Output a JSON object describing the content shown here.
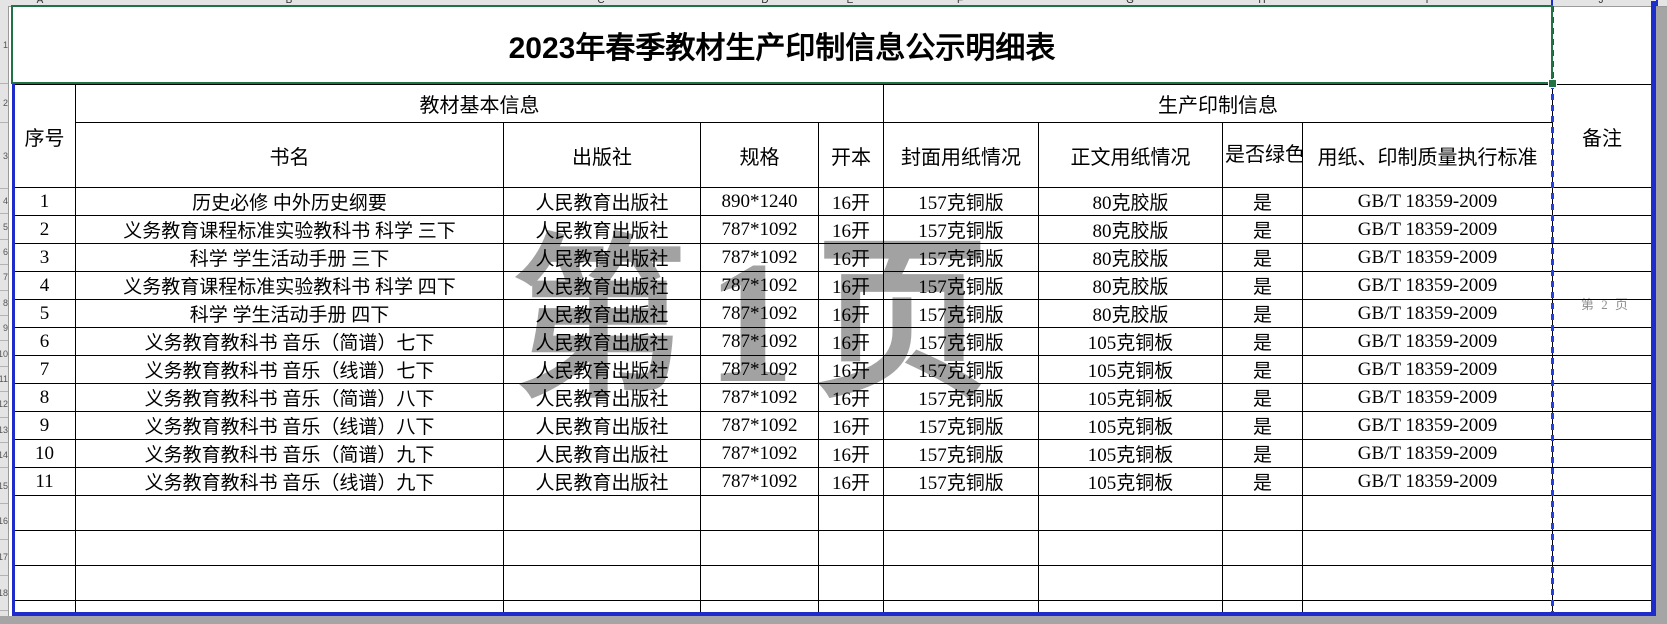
{
  "title": "2023年春季教材生产印制信息公示明细表",
  "chrome": {
    "column_letters": [
      "A",
      "B",
      "C",
      "D",
      "E",
      "F",
      "G",
      "H",
      "I",
      "J"
    ],
    "row_numbers": [
      "1",
      "2",
      "3",
      "4",
      "5",
      "6",
      "7",
      "8",
      "9",
      "10",
      "11",
      "12",
      "13",
      "14",
      "15",
      "16",
      "17",
      "18"
    ]
  },
  "watermarks": {
    "page1": "第 1 页",
    "page2": "第 2 页"
  },
  "table": {
    "header_groups": {
      "serial": "序号",
      "basic_info": "教材基本信息",
      "production_info": "生产印制信息",
      "remark": "备注"
    },
    "sub_headers": {
      "book_name": "书名",
      "publisher": "出版社",
      "spec": "规格",
      "format": "开本",
      "cover_paper": "封面用纸情况",
      "body_paper": "正文用纸情况",
      "green_print": "是否绿色印刷",
      "standard": "用纸、印制质量执行标准"
    },
    "rows": [
      {
        "seq": "1",
        "name": "历史必修 中外历史纲要",
        "publisher": "人民教育出版社",
        "spec": "890*1240",
        "format": "16开",
        "cover": "157克铜版",
        "body": "80克胶版",
        "green": "是",
        "standard": "GB/T 18359-2009",
        "remark": ""
      },
      {
        "seq": "2",
        "name": "义务教育课程标准实验教科书 科学 三下",
        "publisher": "人民教育出版社",
        "spec": "787*1092",
        "format": "16开",
        "cover": "157克铜版",
        "body": "80克胶版",
        "green": "是",
        "standard": "GB/T 18359-2009",
        "remark": ""
      },
      {
        "seq": "3",
        "name": "科学 学生活动手册 三下",
        "publisher": "人民教育出版社",
        "spec": "787*1092",
        "format": "16开",
        "cover": "157克铜版",
        "body": "80克胶版",
        "green": "是",
        "standard": "GB/T 18359-2009",
        "remark": ""
      },
      {
        "seq": "4",
        "name": "义务教育课程标准实验教科书 科学 四下",
        "publisher": "人民教育出版社",
        "spec": "787*1092",
        "format": "16开",
        "cover": "157克铜版",
        "body": "80克胶版",
        "green": "是",
        "standard": "GB/T 18359-2009",
        "remark": ""
      },
      {
        "seq": "5",
        "name": "科学 学生活动手册 四下",
        "publisher": "人民教育出版社",
        "spec": "787*1092",
        "format": "16开",
        "cover": "157克铜版",
        "body": "80克胶版",
        "green": "是",
        "standard": "GB/T 18359-2009",
        "remark": ""
      },
      {
        "seq": "6",
        "name": "义务教育教科书 音乐（简谱）七下",
        "publisher": "人民教育出版社",
        "spec": "787*1092",
        "format": "16开",
        "cover": "157克铜版",
        "body": "105克铜板",
        "green": "是",
        "standard": "GB/T 18359-2009",
        "remark": ""
      },
      {
        "seq": "7",
        "name": "义务教育教科书 音乐（线谱）七下",
        "publisher": "人民教育出版社",
        "spec": "787*1092",
        "format": "16开",
        "cover": "157克铜版",
        "body": "105克铜板",
        "green": "是",
        "standard": "GB/T 18359-2009",
        "remark": ""
      },
      {
        "seq": "8",
        "name": "义务教育教科书 音乐（简谱）八下",
        "publisher": "人民教育出版社",
        "spec": "787*1092",
        "format": "16开",
        "cover": "157克铜版",
        "body": "105克铜板",
        "green": "是",
        "standard": "GB/T 18359-2009",
        "remark": ""
      },
      {
        "seq": "9",
        "name": "义务教育教科书 音乐（线谱）八下",
        "publisher": "人民教育出版社",
        "spec": "787*1092",
        "format": "16开",
        "cover": "157克铜版",
        "body": "105克铜板",
        "green": "是",
        "standard": "GB/T 18359-2009",
        "remark": ""
      },
      {
        "seq": "10",
        "name": "义务教育教科书 音乐（简谱）九下",
        "publisher": "人民教育出版社",
        "spec": "787*1092",
        "format": "16开",
        "cover": "157克铜版",
        "body": "105克铜板",
        "green": "是",
        "standard": "GB/T 18359-2009",
        "remark": ""
      },
      {
        "seq": "11",
        "name": "义务教育教科书 音乐（线谱）九下",
        "publisher": "人民教育出版社",
        "spec": "787*1092",
        "format": "16开",
        "cover": "157克铜版",
        "body": "105克铜板",
        "green": "是",
        "standard": "GB/T 18359-2009",
        "remark": ""
      }
    ],
    "empty_row_count": 4
  },
  "colors": {
    "selection_green": "#217346",
    "page_break_blue": "#1f2ccc",
    "watermark_gray": "#696969",
    "outside_gray": "#a5a5a5",
    "grid_black": "#000000"
  }
}
